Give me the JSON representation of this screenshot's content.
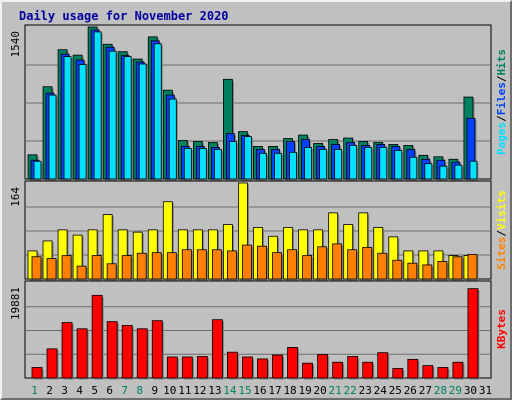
{
  "chart_data": {
    "type": "bar",
    "title": "Daily usage for November 2020",
    "categories": [
      "1",
      "2",
      "3",
      "4",
      "5",
      "6",
      "7",
      "8",
      "9",
      "10",
      "11",
      "12",
      "13",
      "14",
      "15",
      "16",
      "17",
      "18",
      "19",
      "20",
      "21",
      "22",
      "23",
      "24",
      "25",
      "26",
      "27",
      "28",
      "29",
      "30",
      "31"
    ],
    "weekend_days": [
      "1",
      "7",
      "8",
      "14",
      "15",
      "21",
      "22",
      "28",
      "29"
    ],
    "panels": [
      {
        "id": "hits",
        "ymax": 1540,
        "ymax_label": "1540",
        "legend": [
          "Pages",
          "/",
          "Files",
          "/",
          "Hits"
        ],
        "series": [
          {
            "name": "Hits",
            "color": "#008060",
            "values": [
              245,
              935,
              1310,
              1255,
              1540,
              1365,
              1290,
              1215,
              1440,
              900,
              390,
              380,
              370,
              1010,
              480,
              330,
              330,
              410,
              445,
              360,
              400,
              415,
              380,
              370,
              350,
              340,
              240,
              225,
              200,
              830,
              0
            ]
          },
          {
            "name": "Files",
            "color": "#0040ff",
            "values": [
              190,
              870,
              1265,
              1205,
              1510,
              1335,
              1250,
              1185,
              1400,
              850,
              330,
              330,
              320,
              460,
              440,
              300,
              300,
              380,
              400,
              330,
              350,
              370,
              340,
              350,
              330,
              300,
              200,
              190,
              170,
              615,
              0
            ]
          },
          {
            "name": "Pages",
            "color": "#00e0ff",
            "values": [
              180,
              850,
              1240,
              1160,
              1490,
              1295,
              1240,
              1165,
              1370,
              810,
              310,
              310,
              300,
              380,
              430,
              260,
              260,
              270,
              320,
              300,
              300,
              340,
              320,
              320,
              290,
              220,
              155,
              130,
              140,
              180,
              0
            ]
          }
        ]
      },
      {
        "id": "visits",
        "ymax": 164,
        "ymax_label": "164",
        "legend": [
          "Sites",
          "/",
          "Visits"
        ],
        "series": [
          {
            "name": "Visits",
            "color": "#ffff00",
            "values": [
              48,
              65,
              84,
              75,
              84,
              110,
              84,
              80,
              84,
              132,
              84,
              84,
              84,
              93,
              164,
              88,
              73,
              88,
              84,
              84,
              113,
              93,
              113,
              88,
              72,
              48,
              48,
              48,
              40,
              40,
              0
            ]
          },
          {
            "name": "Sites",
            "color": "#ff8000",
            "values": [
              38,
              35,
              40,
              22,
              40,
              26,
              40,
              44,
              45,
              45,
              50,
              50,
              50,
              48,
              58,
              56,
              45,
              50,
              40,
              55,
              60,
              50,
              54,
              44,
              32,
              27,
              24,
              30,
              38,
              42,
              0
            ]
          }
        ]
      },
      {
        "id": "kbytes",
        "ymax": 19881,
        "ymax_label": "19881",
        "legend": [
          "KBytes"
        ],
        "series": [
          {
            "name": "KBytes",
            "color": "#ff0000",
            "values": [
              2200,
              6100,
              11600,
              10300,
              17300,
              11800,
              11000,
              10300,
              12000,
              4400,
              4400,
              4500,
              12200,
              5400,
              4400,
              4000,
              4800,
              6400,
              3100,
              4900,
              3300,
              4500,
              3300,
              5300,
              2000,
              3900,
              2600,
              2200,
              3300,
              18700,
              0
            ]
          }
        ]
      }
    ]
  }
}
